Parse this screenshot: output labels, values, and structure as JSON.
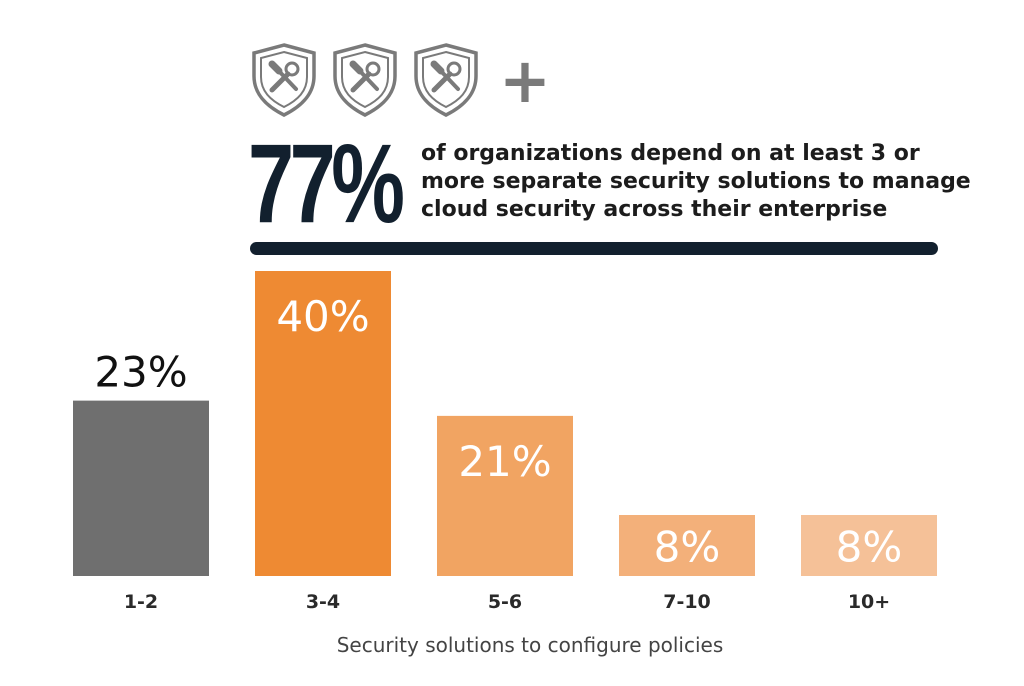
{
  "headline": {
    "stat": "77%",
    "text": "of organizations depend on at least 3 or more separate security solutions to manage cloud security across their enterprise"
  },
  "icons": [
    "shield-tools-icon",
    "shield-tools-icon",
    "shield-tools-icon",
    "plus-icon"
  ],
  "colors": {
    "dark": "#12202e",
    "gray_bar": "#6f6f6f",
    "orange_1": "#ee8a33",
    "orange_2": "#f1a462",
    "orange_3": "#f3b07a",
    "orange_4": "#f5c198",
    "icon": "#7a7a7a"
  },
  "chart_data": {
    "type": "bar",
    "title": "",
    "xlabel": "Security solutions to configure policies",
    "ylabel": "",
    "categories": [
      "1-2",
      "3-4",
      "5-6",
      "7-10",
      "10+"
    ],
    "values": [
      23,
      40,
      21,
      8,
      8
    ],
    "data_labels": [
      "23%",
      "40%",
      "21%",
      "8%",
      "8%"
    ],
    "ylim": [
      0,
      40
    ],
    "grid": false,
    "legend": "none",
    "bar_colors": [
      "#6f6f6f",
      "#ee8a33",
      "#f1a462",
      "#f3b07a",
      "#f5c198"
    ]
  }
}
